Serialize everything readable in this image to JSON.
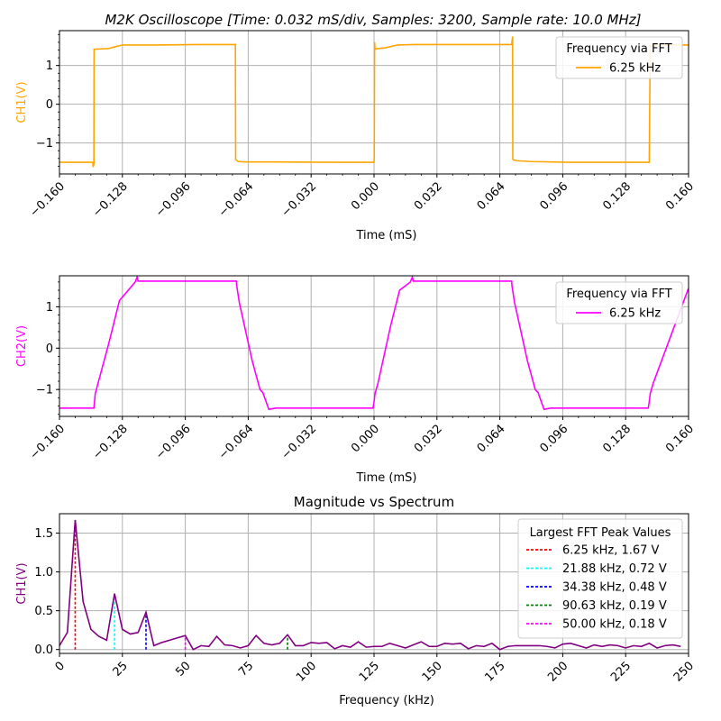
{
  "figure_title": "M2K Oscilloscope [Time: 0.032 mS/div, Samples: 3200, Sample rate: 10.0 MHz]",
  "chart_data": [
    {
      "type": "line",
      "title": "",
      "xlabel": "Time (mS)",
      "ylabel": "CH1(V)",
      "xlim": [
        -0.16,
        0.16
      ],
      "ylim": [
        -1.8,
        1.9
      ],
      "xticks": [
        "−0.160",
        "−0.128",
        "−0.096",
        "−0.064",
        "−0.032",
        "0.000",
        "0.032",
        "0.064",
        "0.096",
        "0.128",
        "0.160"
      ],
      "yticks": [
        {
          "v": 1,
          "label": "1"
        },
        {
          "v": 0,
          "label": "0"
        },
        {
          "v": -1,
          "label": "−1"
        }
      ],
      "grid": true,
      "legend_title": "Frequency via FFT",
      "legend_position": "top-right",
      "series": [
        {
          "name": "6.25 kHz",
          "color": "#ffa500",
          "x": [
            -0.16,
            -0.143,
            -0.1429,
            -0.1425,
            -0.1424,
            -0.142,
            -0.135,
            -0.128,
            -0.11,
            -0.09,
            -0.07,
            -0.0705,
            -0.0704,
            -0.07,
            -0.069,
            -0.065,
            -0.05,
            -0.02,
            0.0,
            0.0001,
            0.0003,
            0.0005,
            0.001,
            0.006,
            0.012,
            0.02,
            0.04,
            0.07,
            0.0705,
            0.0706,
            0.071,
            0.073,
            0.08,
            0.1,
            0.14,
            0.1405,
            0.1408,
            0.144,
            0.16
          ],
          "y": [
            -1.5,
            -1.5,
            -1.62,
            -1.55,
            1.42,
            1.42,
            1.44,
            1.53,
            1.53,
            1.54,
            1.54,
            1.54,
            -1.42,
            -1.45,
            -1.48,
            -1.49,
            -1.49,
            -1.5,
            -1.5,
            -1.4,
            1.6,
            1.42,
            1.43,
            1.46,
            1.53,
            1.54,
            1.54,
            1.54,
            1.75,
            -1.42,
            -1.44,
            -1.46,
            -1.48,
            -1.5,
            -1.5,
            1.52,
            1.52,
            1.53,
            1.53
          ]
        }
      ]
    },
    {
      "type": "line",
      "title": "",
      "xlabel": "Time (mS)",
      "ylabel": "CH2(V)",
      "xlim": [
        -0.16,
        0.16
      ],
      "ylim": [
        -1.65,
        1.75
      ],
      "xticks": [
        "−0.160",
        "−0.128",
        "−0.096",
        "−0.064",
        "−0.032",
        "0.000",
        "0.032",
        "0.064",
        "0.096",
        "0.128",
        "0.160"
      ],
      "yticks": [
        {
          "v": 1,
          "label": "1"
        },
        {
          "v": 0,
          "label": "0"
        },
        {
          "v": -1,
          "label": "−1"
        }
      ],
      "grid": true,
      "legend_title": "Frequency via FFT",
      "legend_position": "top-right",
      "series": [
        {
          "name": "6.25 kHz",
          "color": "#ff00ff",
          "x": [
            -0.16,
            -0.1425,
            -0.1422,
            -0.1418,
            -0.135,
            -0.1295,
            -0.125,
            -0.1215,
            -0.1205,
            -0.12,
            -0.07,
            -0.0698,
            -0.0685,
            -0.062,
            -0.058,
            -0.0565,
            -0.0545,
            -0.0535,
            -0.05,
            -0.0005,
            0.0,
            0.0005,
            0.002,
            0.0085,
            0.013,
            0.0185,
            0.0195,
            0.02,
            0.07,
            0.0702,
            0.0715,
            0.078,
            0.082,
            0.0835,
            0.0855,
            0.0865,
            0.09,
            0.1395,
            0.14,
            0.1405,
            0.142,
            0.16
          ],
          "y": [
            -1.45,
            -1.45,
            -1.3,
            -1.1,
            0.1,
            1.15,
            1.4,
            1.6,
            1.72,
            1.62,
            1.62,
            1.5,
            1.1,
            -0.3,
            -1.0,
            -1.08,
            -1.35,
            -1.48,
            -1.45,
            -1.45,
            -1.3,
            -1.1,
            -0.85,
            0.55,
            1.4,
            1.6,
            1.72,
            1.62,
            1.62,
            1.5,
            1.1,
            -0.3,
            -1.0,
            -1.08,
            -1.35,
            -1.48,
            -1.45,
            -1.45,
            -1.3,
            -1.1,
            -0.85,
            1.45
          ]
        }
      ]
    },
    {
      "type": "line",
      "title": "Magnitude vs Spectrum",
      "xlabel": "Frequency (kHz)",
      "ylabel": "CH1(V)",
      "xlim": [
        0,
        250
      ],
      "ylim": [
        -0.05,
        1.75
      ],
      "xticks": [
        "0",
        "25",
        "50",
        "75",
        "100",
        "125",
        "150",
        "175",
        "200",
        "225",
        "250"
      ],
      "yticks": [
        {
          "v": 0,
          "label": "0.0"
        },
        {
          "v": 0.5,
          "label": "0.5"
        },
        {
          "v": 1.0,
          "label": "1.0"
        },
        {
          "v": 1.5,
          "label": "1.5"
        }
      ],
      "grid": true,
      "legend_title": "Largest FFT Peak Values",
      "legend_position": "top-right",
      "spectrum": {
        "color": "#800080",
        "x": [
          0,
          3.13,
          6.25,
          9.38,
          12.5,
          15.63,
          18.75,
          21.88,
          25.0,
          28.13,
          31.25,
          34.38,
          37.5,
          40.63,
          43.75,
          46.88,
          50.0,
          53.13,
          56.25,
          59.38,
          62.5,
          65.63,
          68.75,
          71.88,
          75.0,
          78.13,
          81.25,
          84.38,
          87.5,
          90.63,
          93.75,
          96.88,
          100.0,
          103.13,
          106.25,
          109.38,
          112.5,
          115.63,
          118.75,
          121.88,
          125.0,
          128.13,
          131.25,
          134.38,
          137.5,
          140.63,
          143.75,
          146.88,
          150.0,
          153.13,
          156.25,
          159.38,
          162.5,
          165.63,
          168.75,
          171.88,
          175.0,
          178.13,
          181.25,
          184.38,
          187.5,
          190.63,
          193.75,
          196.88,
          200.0,
          203.13,
          206.25,
          209.38,
          212.5,
          215.63,
          218.75,
          221.88,
          225.0,
          228.13,
          231.25,
          234.38,
          237.5,
          240.63,
          243.75,
          246.88
        ],
        "y": [
          0.05,
          0.22,
          1.67,
          0.62,
          0.26,
          0.17,
          0.12,
          0.72,
          0.26,
          0.2,
          0.22,
          0.48,
          0.05,
          0.09,
          0.12,
          0.15,
          0.18,
          0.0,
          0.05,
          0.04,
          0.17,
          0.06,
          0.05,
          0.02,
          0.05,
          0.18,
          0.08,
          0.06,
          0.08,
          0.19,
          0.05,
          0.05,
          0.09,
          0.08,
          0.09,
          0.01,
          0.05,
          0.03,
          0.1,
          0.03,
          0.04,
          0.04,
          0.08,
          0.05,
          0.02,
          0.06,
          0.1,
          0.04,
          0.04,
          0.08,
          0.07,
          0.08,
          0.01,
          0.05,
          0.04,
          0.08,
          0.0,
          0.04,
          0.05,
          0.05,
          0.05,
          0.05,
          0.04,
          0.02,
          0.07,
          0.08,
          0.05,
          0.02,
          0.06,
          0.04,
          0.06,
          0.05,
          0.02,
          0.05,
          0.04,
          0.08,
          0.02,
          0.05,
          0.06,
          0.04
        ]
      },
      "peaks": [
        {
          "label": "6.25 kHz, 1.67 V",
          "freq": 6.25,
          "value": 1.67,
          "color": "#ff0000"
        },
        {
          "label": "21.88 kHz, 0.72 V",
          "freq": 21.88,
          "value": 0.72,
          "color": "#00ffff"
        },
        {
          "label": "34.38 kHz, 0.48 V",
          "freq": 34.38,
          "value": 0.48,
          "color": "#0000ff"
        },
        {
          "label": "90.63 kHz, 0.19 V",
          "freq": 90.63,
          "value": 0.19,
          "color": "#008000"
        },
        {
          "label": "50.00 kHz, 0.18 V",
          "freq": 50.0,
          "value": 0.18,
          "color": "#ff00ff"
        }
      ]
    }
  ]
}
